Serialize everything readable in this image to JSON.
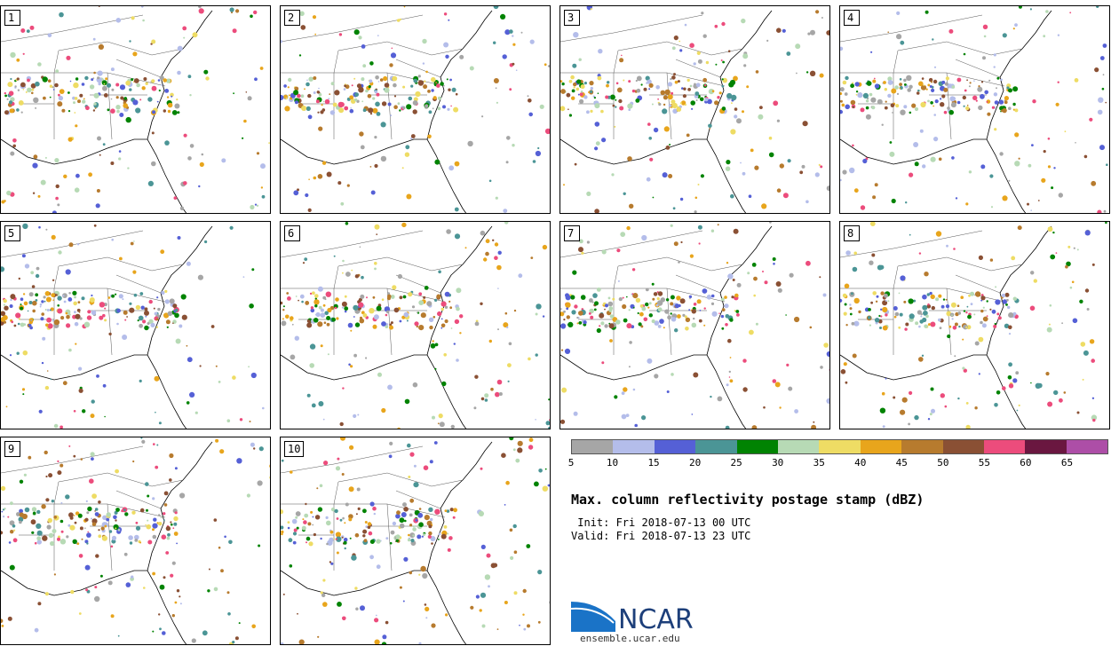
{
  "panels": [
    "1",
    "2",
    "3",
    "4",
    "5",
    "6",
    "7",
    "8",
    "9",
    "10"
  ],
  "colorbar": {
    "colors": [
      "#a6a6a6",
      "#b4bdea",
      "#5560d6",
      "#4b9596",
      "#018302",
      "#b7dab5",
      "#eedc64",
      "#e8a51c",
      "#b77b2e",
      "#8a5034",
      "#ec4c7c",
      "#6a1740",
      "#ad4ea7"
    ],
    "ticks": [
      "5",
      "10",
      "15",
      "20",
      "25",
      "30",
      "35",
      "40",
      "45",
      "50",
      "55",
      "60",
      "65"
    ]
  },
  "title": "Max. column reflectivity postage stamp (dBZ)",
  "init": " Init: Fri 2018-07-13 00 UTC",
  "valid": "Valid: Fri 2018-07-13 23 UTC",
  "logo": {
    "text": "NCAR",
    "url": "ensemble.ucar.edu"
  }
}
